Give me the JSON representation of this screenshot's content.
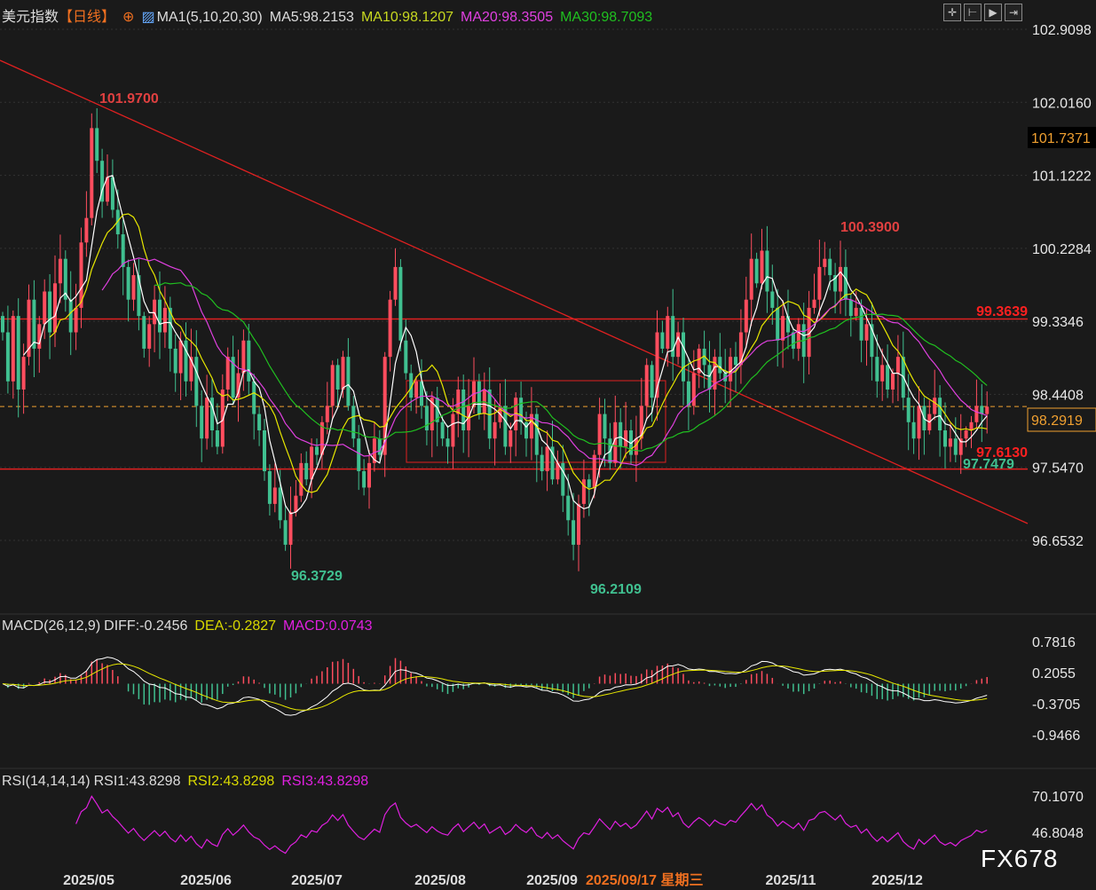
{
  "header": {
    "instrument": "美元指数",
    "period": "【日线】",
    "ma_label": "MA1(5,10,20,30)",
    "ma5": "MA5:98.2153",
    "ma10": "MA10:98.1207",
    "ma20": "MA20:98.3505",
    "ma30": "MA30:98.7093"
  },
  "macd_header": {
    "label": "MACD(26,12,9)",
    "diff": "DIFF:-0.2456",
    "dea": "DEA:-0.2827",
    "macd": "MACD:0.0743"
  },
  "rsi_header": {
    "label": "RSI(14,14,14)",
    "rsi1": "RSI1:43.8298",
    "rsi2": "RSI2:43.8298",
    "rsi3": "RSI3:43.8298"
  },
  "colors": {
    "up": "#ff4d5e",
    "down": "#40c090",
    "ma5": "#ffffff",
    "ma10": "#e8e800",
    "ma20": "#e040e0",
    "ma30": "#20c020",
    "trend": "#e02020",
    "last": "#f0a030"
  },
  "toolbar": [
    "crosshair-icon",
    "zoom-range-icon",
    "play-icon",
    "goto-end-icon"
  ],
  "chart_data": {
    "type": "candlestick",
    "price_axis_ticks": [
      "102.9098",
      "102.0160",
      "101.1222",
      "100.2284",
      "99.3346",
      "98.4408",
      "97.5470",
      "96.6532"
    ],
    "price_ylim": [
      96.6532,
      102.9098
    ],
    "last_price": "98.2919",
    "crosshair_price": "101.7371",
    "date_labels": [
      "2025/05",
      "2025/06",
      "2025/07",
      "2025/08",
      "2025/09",
      "2025/11",
      "2025/12"
    ],
    "crosshair_date": "2025/09/17 星期三",
    "annotations": {
      "high1": "101.9700",
      "low1": "96.3729",
      "low2": "96.2109",
      "high2": "100.3900",
      "low3": "97.7479",
      "support": "97.6130",
      "resistance": "99.3639"
    },
    "horizontal_levels": [
      99.3639,
      97.613
    ],
    "macd_axis_ticks": [
      "0.7816",
      "0.2055",
      "-0.3705",
      "-0.9466"
    ],
    "rsi_axis_ticks": [
      "70.1070",
      "46.8048"
    ],
    "close": [
      99.2,
      98.6,
      99.4,
      98.5,
      98.9,
      99.6,
      99.0,
      99.3,
      99.7,
      99.2,
      99.8,
      100.1,
      99.6,
      99.2,
      99.5,
      100.3,
      100.6,
      101.7,
      101.3,
      100.8,
      101.1,
      100.7,
      100.4,
      100.0,
      99.6,
      99.9,
      99.4,
      99.0,
      99.3,
      99.6,
      99.2,
      99.5,
      99.0,
      98.7,
      99.1,
      98.6,
      98.9,
      98.3,
      97.9,
      98.4,
      98.0,
      97.8,
      98.5,
      98.9,
      98.4,
      98.7,
      99.1,
      98.6,
      98.2,
      98.0,
      97.5,
      97.1,
      97.3,
      96.9,
      96.6,
      97.0,
      97.2,
      97.6,
      97.4,
      97.8,
      97.7,
      98.1,
      98.3,
      98.8,
      98.5,
      98.9,
      98.3,
      97.9,
      97.5,
      97.3,
      97.6,
      97.9,
      97.7,
      98.9,
      99.6,
      100.0,
      99.1,
      98.7,
      98.4,
      98.6,
      98.3,
      98.0,
      98.4,
      98.1,
      97.9,
      97.8,
      98.2,
      98.5,
      98.0,
      98.3,
      98.6,
      98.2,
      98.5,
      97.9,
      98.1,
      98.3,
      97.8,
      98.0,
      98.4,
      98.1,
      97.9,
      98.2,
      97.7,
      97.5,
      97.8,
      97.4,
      97.6,
      97.2,
      96.9,
      96.6,
      97.1,
      97.4,
      97.3,
      97.7,
      98.2,
      97.9,
      97.6,
      98.1,
      97.8,
      98.0,
      97.7,
      97.9,
      98.3,
      98.8,
      98.4,
      99.2,
      99.0,
      99.4,
      98.9,
      99.2,
      98.6,
      98.3,
      98.7,
      99.0,
      98.8,
      98.5,
      98.9,
      98.7,
      98.6,
      98.9,
      98.8,
      99.2,
      99.6,
      100.1,
      99.8,
      100.2,
      99.7,
      99.5,
      99.1,
      99.4,
      99.2,
      99.0,
      99.3,
      98.9,
      99.5,
      99.6,
      100.0,
      100.1,
      99.9,
      99.7,
      100.0,
      99.6,
      99.4,
      99.5,
      99.1,
      99.3,
      98.9,
      98.6,
      98.8,
      98.5,
      98.7,
      98.9,
      98.4,
      98.1,
      97.9,
      98.3,
      98.0,
      98.2,
      98.4,
      98.0,
      97.8,
      97.9,
      97.7,
      97.9,
      98.0,
      98.1,
      98.3,
      98.2,
      98.29
    ]
  },
  "watermark": "FX678"
}
